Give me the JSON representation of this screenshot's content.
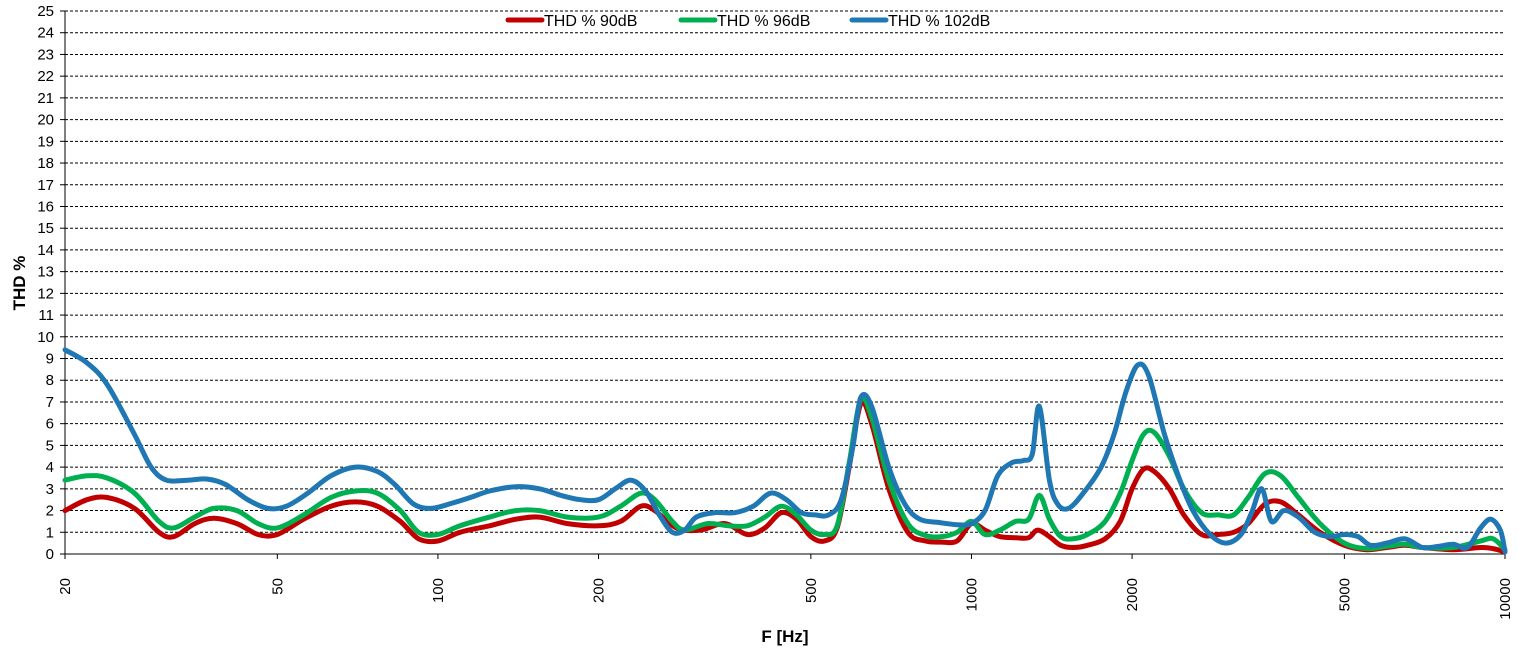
{
  "chart_data": {
    "type": "line",
    "title": "",
    "xlabel": "F [Hz]",
    "ylabel": "THD %",
    "x_scale": "log",
    "xlim": [
      20,
      10000
    ],
    "ylim": [
      0,
      25
    ],
    "grid": "horizontal dashed",
    "legend_position": "top",
    "y_ticks": [
      0,
      1,
      2,
      3,
      4,
      5,
      6,
      7,
      8,
      9,
      10,
      11,
      12,
      13,
      14,
      15,
      16,
      17,
      18,
      19,
      20,
      21,
      22,
      23,
      24,
      25
    ],
    "x_ticks": [
      20,
      50,
      100,
      200,
      500,
      1000,
      2000,
      5000,
      10000
    ],
    "series": [
      {
        "name": "THD % 90dB",
        "color": "#c00000",
        "points": [
          [
            20,
            2.0
          ],
          [
            22,
            2.5
          ],
          [
            24,
            2.6
          ],
          [
            27,
            2.1
          ],
          [
            30,
            1.0
          ],
          [
            32,
            0.8
          ],
          [
            35,
            1.4
          ],
          [
            38,
            1.65
          ],
          [
            42,
            1.4
          ],
          [
            46,
            0.9
          ],
          [
            50,
            0.9
          ],
          [
            56,
            1.6
          ],
          [
            63,
            2.2
          ],
          [
            70,
            2.4
          ],
          [
            77,
            2.2
          ],
          [
            85,
            1.5
          ],
          [
            92,
            0.7
          ],
          [
            100,
            0.6
          ],
          [
            110,
            1.0
          ],
          [
            125,
            1.3
          ],
          [
            140,
            1.6
          ],
          [
            155,
            1.7
          ],
          [
            175,
            1.4
          ],
          [
            200,
            1.3
          ],
          [
            220,
            1.5
          ],
          [
            240,
            2.2
          ],
          [
            255,
            2.0
          ],
          [
            280,
            1.2
          ],
          [
            310,
            1.1
          ],
          [
            345,
            1.4
          ],
          [
            380,
            0.9
          ],
          [
            410,
            1.2
          ],
          [
            440,
            1.9
          ],
          [
            470,
            1.6
          ],
          [
            500,
            0.8
          ],
          [
            530,
            0.6
          ],
          [
            560,
            1.2
          ],
          [
            590,
            4.0
          ],
          [
            620,
            6.9
          ],
          [
            650,
            6.0
          ],
          [
            700,
            3.0
          ],
          [
            760,
            1.0
          ],
          [
            820,
            0.6
          ],
          [
            880,
            0.55
          ],
          [
            940,
            0.6
          ],
          [
            1000,
            1.4
          ],
          [
            1060,
            1.1
          ],
          [
            1130,
            0.8
          ],
          [
            1210,
            0.75
          ],
          [
            1280,
            0.75
          ],
          [
            1330,
            1.1
          ],
          [
            1400,
            0.8
          ],
          [
            1470,
            0.4
          ],
          [
            1550,
            0.3
          ],
          [
            1650,
            0.4
          ],
          [
            1780,
            0.7
          ],
          [
            1900,
            1.5
          ],
          [
            2000,
            3.0
          ],
          [
            2100,
            3.9
          ],
          [
            2200,
            3.8
          ],
          [
            2350,
            3.0
          ],
          [
            2500,
            1.8
          ],
          [
            2700,
            0.9
          ],
          [
            2900,
            0.9
          ],
          [
            3100,
            1.0
          ],
          [
            3300,
            1.4
          ],
          [
            3550,
            2.3
          ],
          [
            3800,
            2.4
          ],
          [
            4100,
            1.8
          ],
          [
            4500,
            1.0
          ],
          [
            5000,
            0.4
          ],
          [
            5500,
            0.2
          ],
          [
            6000,
            0.3
          ],
          [
            6500,
            0.4
          ],
          [
            7000,
            0.3
          ],
          [
            8000,
            0.2
          ],
          [
            9000,
            0.3
          ],
          [
            9500,
            0.25
          ],
          [
            10000,
            0.1
          ]
        ]
      },
      {
        "name": "THD % 96dB",
        "color": "#00b050",
        "points": [
          [
            20,
            3.4
          ],
          [
            22,
            3.6
          ],
          [
            24,
            3.5
          ],
          [
            27,
            2.8
          ],
          [
            30,
            1.5
          ],
          [
            32,
            1.2
          ],
          [
            35,
            1.7
          ],
          [
            38,
            2.1
          ],
          [
            42,
            2.0
          ],
          [
            46,
            1.4
          ],
          [
            50,
            1.2
          ],
          [
            56,
            1.8
          ],
          [
            63,
            2.6
          ],
          [
            70,
            2.9
          ],
          [
            77,
            2.8
          ],
          [
            85,
            2.0
          ],
          [
            92,
            1.0
          ],
          [
            100,
            0.9
          ],
          [
            110,
            1.3
          ],
          [
            125,
            1.7
          ],
          [
            140,
            2.0
          ],
          [
            155,
            2.0
          ],
          [
            175,
            1.7
          ],
          [
            200,
            1.7
          ],
          [
            220,
            2.2
          ],
          [
            240,
            2.8
          ],
          [
            255,
            2.5
          ],
          [
            275,
            1.5
          ],
          [
            290,
            1.1
          ],
          [
            320,
            1.4
          ],
          [
            350,
            1.3
          ],
          [
            380,
            1.3
          ],
          [
            410,
            1.7
          ],
          [
            440,
            2.2
          ],
          [
            470,
            1.8
          ],
          [
            500,
            1.1
          ],
          [
            530,
            0.9
          ],
          [
            560,
            1.3
          ],
          [
            590,
            4.2
          ],
          [
            620,
            7.1
          ],
          [
            650,
            6.3
          ],
          [
            700,
            3.4
          ],
          [
            760,
            1.4
          ],
          [
            820,
            0.85
          ],
          [
            880,
            0.8
          ],
          [
            940,
            1.0
          ],
          [
            1000,
            1.5
          ],
          [
            1060,
            0.9
          ],
          [
            1130,
            1.1
          ],
          [
            1210,
            1.5
          ],
          [
            1280,
            1.6
          ],
          [
            1340,
            2.7
          ],
          [
            1400,
            1.6
          ],
          [
            1470,
            0.8
          ],
          [
            1550,
            0.7
          ],
          [
            1650,
            0.9
          ],
          [
            1780,
            1.5
          ],
          [
            1900,
            2.8
          ],
          [
            2000,
            4.3
          ],
          [
            2100,
            5.5
          ],
          [
            2200,
            5.6
          ],
          [
            2350,
            4.5
          ],
          [
            2500,
            3.0
          ],
          [
            2700,
            1.9
          ],
          [
            2900,
            1.8
          ],
          [
            3100,
            1.8
          ],
          [
            3300,
            2.6
          ],
          [
            3550,
            3.7
          ],
          [
            3800,
            3.6
          ],
          [
            4100,
            2.6
          ],
          [
            4500,
            1.4
          ],
          [
            5000,
            0.5
          ],
          [
            5500,
            0.25
          ],
          [
            6000,
            0.35
          ],
          [
            6500,
            0.45
          ],
          [
            7000,
            0.3
          ],
          [
            8000,
            0.3
          ],
          [
            9000,
            0.6
          ],
          [
            9500,
            0.7
          ],
          [
            10000,
            0.2
          ]
        ]
      },
      {
        "name": "THD % 102dB",
        "color": "#1f77b4",
        "points": [
          [
            20,
            9.4
          ],
          [
            22,
            8.8
          ],
          [
            24,
            7.8
          ],
          [
            27,
            5.5
          ],
          [
            29,
            4.0
          ],
          [
            31,
            3.4
          ],
          [
            34,
            3.4
          ],
          [
            37,
            3.45
          ],
          [
            40,
            3.2
          ],
          [
            44,
            2.5
          ],
          [
            48,
            2.1
          ],
          [
            52,
            2.2
          ],
          [
            57,
            2.8
          ],
          [
            63,
            3.6
          ],
          [
            70,
            4.0
          ],
          [
            77,
            3.8
          ],
          [
            83,
            3.2
          ],
          [
            90,
            2.3
          ],
          [
            97,
            2.1
          ],
          [
            105,
            2.3
          ],
          [
            115,
            2.6
          ],
          [
            125,
            2.9
          ],
          [
            140,
            3.1
          ],
          [
            155,
            3.0
          ],
          [
            170,
            2.7
          ],
          [
            185,
            2.5
          ],
          [
            200,
            2.5
          ],
          [
            215,
            3.0
          ],
          [
            230,
            3.4
          ],
          [
            245,
            2.9
          ],
          [
            260,
            1.8
          ],
          [
            275,
            1.0
          ],
          [
            290,
            1.1
          ],
          [
            305,
            1.7
          ],
          [
            330,
            1.9
          ],
          [
            360,
            1.9
          ],
          [
            390,
            2.2
          ],
          [
            420,
            2.8
          ],
          [
            450,
            2.5
          ],
          [
            480,
            1.9
          ],
          [
            510,
            1.8
          ],
          [
            540,
            1.8
          ],
          [
            570,
            2.5
          ],
          [
            600,
            5.0
          ],
          [
            620,
            7.2
          ],
          [
            650,
            6.8
          ],
          [
            700,
            4.0
          ],
          [
            750,
            2.3
          ],
          [
            800,
            1.6
          ],
          [
            870,
            1.45
          ],
          [
            940,
            1.35
          ],
          [
            1000,
            1.4
          ],
          [
            1060,
            2.0
          ],
          [
            1120,
            3.6
          ],
          [
            1190,
            4.2
          ],
          [
            1250,
            4.3
          ],
          [
            1300,
            4.6
          ],
          [
            1340,
            6.8
          ],
          [
            1400,
            3.4
          ],
          [
            1450,
            2.3
          ],
          [
            1520,
            2.1
          ],
          [
            1620,
            2.8
          ],
          [
            1750,
            4.0
          ],
          [
            1850,
            5.5
          ],
          [
            1950,
            7.5
          ],
          [
            2050,
            8.7
          ],
          [
            2150,
            8.2
          ],
          [
            2300,
            5.5
          ],
          [
            2450,
            3.5
          ],
          [
            2600,
            2.0
          ],
          [
            2800,
            0.9
          ],
          [
            3000,
            0.5
          ],
          [
            3200,
            0.9
          ],
          [
            3350,
            1.9
          ],
          [
            3500,
            3.0
          ],
          [
            3650,
            1.5
          ],
          [
            3850,
            2.0
          ],
          [
            4100,
            1.7
          ],
          [
            4400,
            1.0
          ],
          [
            4700,
            0.8
          ],
          [
            5000,
            0.9
          ],
          [
            5300,
            0.8
          ],
          [
            5600,
            0.4
          ],
          [
            6000,
            0.5
          ],
          [
            6500,
            0.7
          ],
          [
            7000,
            0.3
          ],
          [
            7500,
            0.35
          ],
          [
            8000,
            0.45
          ],
          [
            8500,
            0.3
          ],
          [
            9000,
            1.2
          ],
          [
            9400,
            1.6
          ],
          [
            9800,
            1.1
          ],
          [
            10000,
            0.1
          ]
        ]
      }
    ]
  }
}
